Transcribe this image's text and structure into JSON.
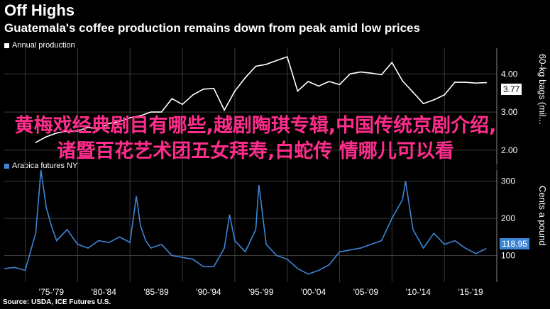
{
  "title": "Off Highs",
  "subtitle": "Guatemala's coffee production remains down from peak amid low prices",
  "source": "Source: USDA, ICE Futures U.S.",
  "overlay_text": "黄梅戏经典剧目有哪些,越剧陶琪专辑,中国传统京剧介绍,诸暨百花艺术团五女拜寿,白蛇传 情哪儿可以看",
  "colors": {
    "production": "#ffffff",
    "price": "#3d86d6",
    "grid": "#3a3a3a",
    "overlay": "#ff2d8c"
  },
  "chart_data": [
    {
      "type": "line",
      "legend": "Annual production",
      "ylabel": "60-kg bags (mil...",
      "yticks": [
        "2.00",
        "3.00",
        "4.00"
      ],
      "ylim": [
        1.7,
        4.6
      ],
      "last_value_label": "3.77",
      "x": [
        1976,
        1977,
        1978,
        1979,
        1980,
        1981,
        1982,
        1983,
        1984,
        1985,
        1986,
        1987,
        1988,
        1989,
        1990,
        1991,
        1992,
        1993,
        1994,
        1995,
        1996,
        1997,
        1998,
        1999,
        2000,
        2001,
        2002,
        2003,
        2004,
        2005,
        2006,
        2007,
        2008,
        2009,
        2010,
        2011,
        2012,
        2013,
        2014,
        2015,
        2016,
        2017,
        2018,
        2019
      ],
      "series": [
        {
          "values": [
            2.2,
            2.35,
            2.45,
            2.5,
            2.5,
            2.6,
            2.55,
            2.7,
            2.75,
            2.85,
            2.9,
            3.0,
            3.0,
            3.35,
            3.2,
            3.45,
            3.6,
            3.62,
            3.05,
            3.55,
            3.9,
            4.2,
            4.25,
            4.35,
            4.45,
            3.55,
            3.8,
            3.68,
            3.8,
            3.72,
            4.0,
            4.05,
            4.02,
            3.98,
            4.3,
            3.82,
            3.52,
            3.22,
            3.32,
            3.45,
            3.78,
            3.78,
            3.76,
            3.77
          ]
        }
      ]
    },
    {
      "type": "line",
      "legend": "Arabica futures NY",
      "ylabel": "Cents a pound",
      "yticks": [
        "100",
        "200",
        "300"
      ],
      "ylim": [
        40,
        330
      ],
      "last_value_label": "118.95",
      "x": [
        1973,
        1974,
        1975,
        1976,
        1976.5,
        1977,
        1977.5,
        1978,
        1979,
        1980,
        1981,
        1982,
        1983,
        1984,
        1985,
        1985.6,
        1986,
        1986.5,
        1987,
        1988,
        1989,
        1990,
        1991,
        1992,
        1993,
        1994,
        1994.5,
        1995,
        1996,
        1997,
        1997.3,
        1998,
        1999,
        2000,
        2001,
        2002,
        2003,
        2004,
        2005,
        2006,
        2007,
        2008,
        2009,
        2010,
        2011,
        2011.3,
        2012,
        2013,
        2014,
        2015,
        2016,
        2017,
        2018,
        2019
      ],
      "xticks": [
        "'75-'79",
        "'80-'84",
        "'85-'89",
        "'90-'94",
        "'95-'99",
        "'00-'04",
        "'05-'09",
        "'10-'14",
        "'15-'19"
      ],
      "series": [
        {
          "values": [
            65,
            68,
            60,
            160,
            330,
            230,
            180,
            140,
            170,
            130,
            120,
            140,
            135,
            150,
            135,
            260,
            180,
            140,
            120,
            130,
            100,
            95,
            90,
            70,
            70,
            120,
            210,
            140,
            110,
            170,
            290,
            130,
            100,
            90,
            65,
            50,
            60,
            75,
            110,
            115,
            120,
            130,
            140,
            200,
            250,
            300,
            170,
            120,
            160,
            130,
            140,
            120,
            105,
            118.95
          ]
        }
      ]
    }
  ]
}
